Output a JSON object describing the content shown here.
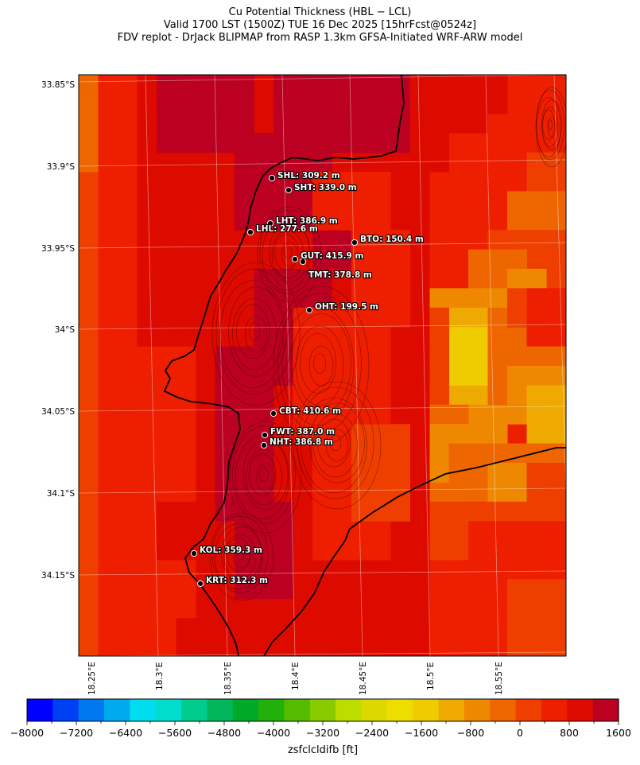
{
  "title": {
    "line1": "Cu Potential Thickness (HBL − LCL)",
    "line2": "Valid 1700 LST (1500Z) TUE 16 Dec 2025 [15hrFcst@0524z]",
    "line3": "FDV replot - DrJack BLIPMAP from RASP 1.3km GFSA-Initiated WRF-ARW model"
  },
  "latitude_labels": [
    "33.85°S",
    "33.9°S",
    "33.95°S",
    "34°S",
    "34.05°S",
    "34.1°S",
    "34.15°S"
  ],
  "longitude_labels": [
    "18.25°E",
    "18.3°E",
    "18.35°E",
    "18.4°E",
    "18.45°E",
    "18.5°E",
    "18.55°E"
  ],
  "stations": [
    {
      "code": "SHL",
      "label": "SHL: 309.2 m",
      "value_m": 309.2
    },
    {
      "code": "SHT",
      "label": "SHT: 339.0 m",
      "value_m": 339.0
    },
    {
      "code": "LHT",
      "label": "LHT: 386.9 m",
      "value_m": 386.9
    },
    {
      "code": "LHL",
      "label": "LHL: 277.6 m",
      "value_m": 277.6
    },
    {
      "code": "BTO",
      "label": "BTO: 150.4 m",
      "value_m": 150.4
    },
    {
      "code": "GUT",
      "label": "GUT: 415.9 m",
      "value_m": 415.9
    },
    {
      "code": "TMT",
      "label": "TMT: 378.8 m",
      "value_m": 378.8
    },
    {
      "code": "OHT",
      "label": "OHT: 199.5 m",
      "value_m": 199.5
    },
    {
      "code": "CBT",
      "label": "CBT: 410.6 m",
      "value_m": 410.6
    },
    {
      "code": "FWT",
      "label": "FWT: 387.0 m",
      "value_m": 387.0
    },
    {
      "code": "NHT",
      "label": "NHT: 386.8 m",
      "value_m": 386.8
    },
    {
      "code": "KOL",
      "label": "KOL: 359.3 m",
      "value_m": 359.3
    },
    {
      "code": "KRT",
      "label": "KRT: 312.3 m",
      "value_m": 312.3
    }
  ],
  "colorbar": {
    "title": "zsfclcldifb [ft]",
    "tick_labels": [
      "−8000",
      "−7200",
      "−6400",
      "−5600",
      "−4800",
      "−4000",
      "−3200",
      "−2400",
      "−1600",
      "−800",
      "0",
      "800",
      "1600"
    ],
    "min": -8000,
    "max": 1600,
    "colors": [
      "#0000ff",
      "#0040f5",
      "#0078f0",
      "#00aaee",
      "#00ddee",
      "#00ddcc",
      "#00cc8e",
      "#00b55a",
      "#00aa28",
      "#22b00a",
      "#55bb00",
      "#88cc00",
      "#bbdd00",
      "#ddd800",
      "#eedd00",
      "#eecc00",
      "#eeaa00",
      "#ee8800",
      "#ee6600",
      "#ee3f00",
      "#ee1e00",
      "#dd0a00",
      "#bb0022"
    ]
  }
}
